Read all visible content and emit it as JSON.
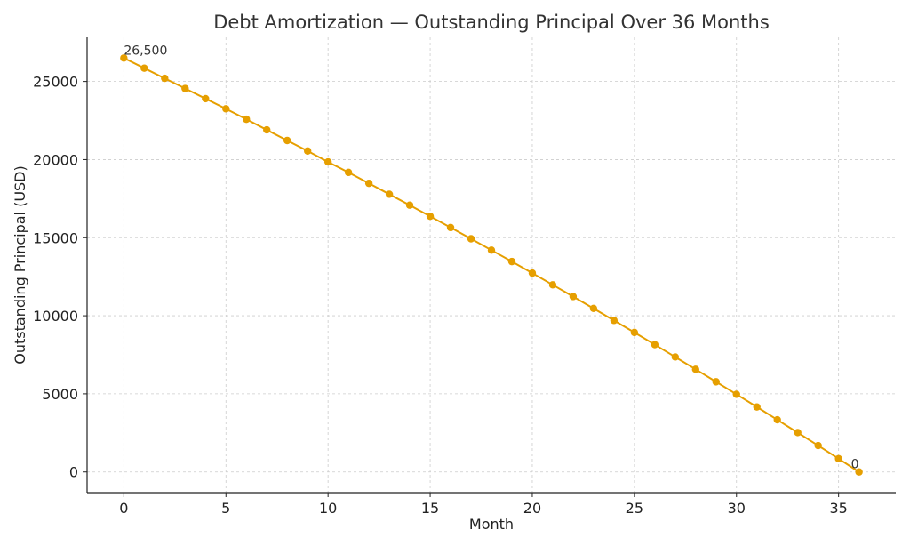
{
  "chart_data": {
    "type": "line",
    "title": "Debt Amortization — Outstanding Principal Over 36 Months",
    "xlabel": "Month",
    "ylabel": "Outstanding Principal (USD)",
    "xlim": [
      -1.8,
      37.8
    ],
    "ylim": [
      -1325,
      27825
    ],
    "xticks": [
      0,
      5,
      10,
      15,
      20,
      25,
      30,
      35
    ],
    "yticks": [
      0,
      5000,
      10000,
      15000,
      20000,
      25000
    ],
    "grid": true,
    "colors": {
      "series": "#E69F00"
    },
    "series": [
      {
        "x": [
          0,
          1,
          2,
          3,
          4,
          5,
          6,
          7,
          8,
          9,
          10,
          11,
          12,
          13,
          14,
          15,
          16,
          17,
          18,
          19,
          20,
          21,
          22,
          23,
          24,
          25,
          26,
          27,
          28,
          29,
          30,
          31,
          32,
          33,
          34,
          35,
          36
        ],
        "values": [
          26500,
          25850,
          25200,
          24550,
          23900,
          23250,
          22580,
          21900,
          21220,
          20550,
          19850,
          19180,
          18480,
          17780,
          17080,
          16370,
          15650,
          14930,
          14200,
          13470,
          12730,
          11980,
          11230,
          10470,
          9700,
          8930,
          8150,
          7360,
          6570,
          5770,
          4970,
          4160,
          3340,
          2520,
          1690,
          850,
          0
        ]
      }
    ],
    "annotations": [
      {
        "x": 0,
        "y": 26500,
        "text": "26,500"
      },
      {
        "x": 36,
        "y": 0,
        "text": "0"
      }
    ]
  }
}
